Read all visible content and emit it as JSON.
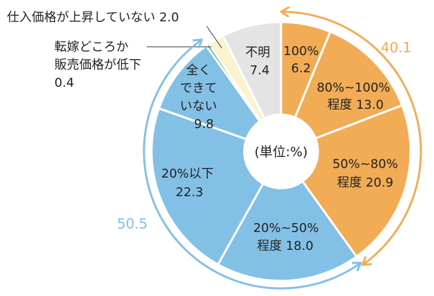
{
  "chart_data": {
    "type": "pie",
    "center_label": "(単位:%)",
    "slices": [
      {
        "label": "100%",
        "value": 6.2,
        "display": "6.2",
        "color": "#f2ac55"
      },
      {
        "label": "80%~100%程度",
        "value": 13.0,
        "display": "13.0",
        "color": "#f2ac55"
      },
      {
        "label": "50%~80%程度",
        "value": 20.9,
        "display": "20.9",
        "color": "#f2ac55"
      },
      {
        "label": "20%~50%程度",
        "value": 18.0,
        "display": "18.0",
        "color": "#83c0e6"
      },
      {
        "label": "20%以下",
        "value": 22.3,
        "display": "22.3",
        "color": "#83c0e6"
      },
      {
        "label": "全くできていない",
        "value": 9.8,
        "display": "9.8",
        "color": "#83c0e6"
      },
      {
        "label": "転嫁どころか販売価格が低下",
        "value": 0.4,
        "display": "0.4",
        "color": "#3fae6a"
      },
      {
        "label": "仕入価格が上昇していない",
        "value": 2.0,
        "display": "2.0",
        "color": "#fbf2cf"
      },
      {
        "label": "不明",
        "value": 7.4,
        "display": "7.4",
        "color": "#e4e4e4"
      }
    ],
    "groups": [
      {
        "value": "40.1",
        "color": "#f2ac55"
      },
      {
        "value": "50.5",
        "color": "#83c0e6"
      }
    ]
  }
}
